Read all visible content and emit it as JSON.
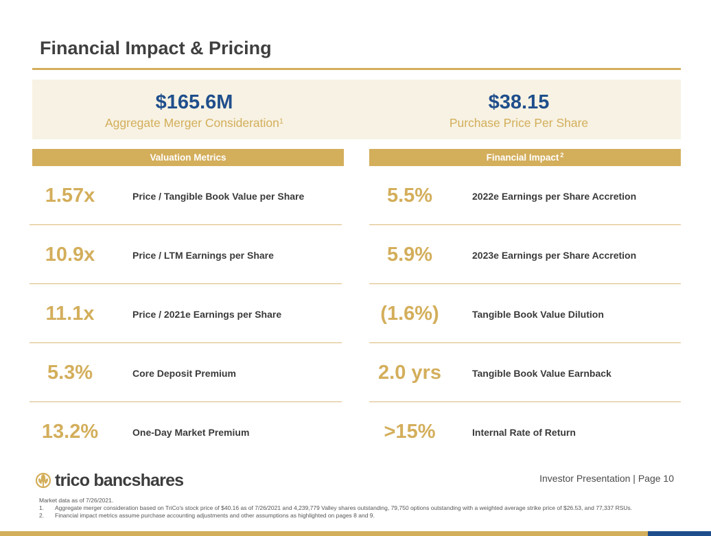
{
  "page": {
    "title": "Financial Impact & Pricing"
  },
  "hero": {
    "left": {
      "value": "$165.6M",
      "label": "Aggregate Merger Consideration",
      "footnote": "1"
    },
    "right": {
      "value": "$38.15",
      "label": "Purchase Price Per Share"
    }
  },
  "valuation": {
    "header": "Valuation Metrics",
    "rows": [
      {
        "value": "1.57x",
        "label": "Price / Tangible Book Value per Share"
      },
      {
        "value": "10.9x",
        "label": "Price / LTM Earnings per Share"
      },
      {
        "value": "11.1x",
        "label": "Price / 2021e Earnings per Share"
      },
      {
        "value": "5.3%",
        "label": "Core Deposit Premium"
      },
      {
        "value": "13.2%",
        "label": "One-Day Market Premium"
      }
    ]
  },
  "impact": {
    "header": "Financial Impact",
    "footnote": "2",
    "rows": [
      {
        "value": "5.5%",
        "label": "2022e Earnings per Share Accretion"
      },
      {
        "value": "5.9%",
        "label": "2023e Earnings per Share Accretion"
      },
      {
        "value": "(1.6%)",
        "label": "Tangible Book Value Dilution"
      },
      {
        "value": "2.0 yrs",
        "label": "Tangible Book Value Earnback"
      },
      {
        "value": ">15%",
        "label": "Internal Rate of Return"
      }
    ]
  },
  "footer": {
    "logo_text": "trico bancshares",
    "page_ref": "Investor Presentation | Page 10",
    "market_data": "Market data as of 7/26/2021.",
    "notes": [
      {
        "num": "1.",
        "text": "Aggregate merger consideration based on TriCo's stock price of $40.16 as of 7/26/2021 and 4,239,779 Valley shares outstanding, 79,750 options outstanding with a weighted average strike price of $26.53, and 77,337 RSUs."
      },
      {
        "num": "2.",
        "text": "Financial impact metrics assume purchase accounting adjustments and other assumptions as highlighted on pages 8 and 9."
      }
    ]
  },
  "colors": {
    "gold": "#d3ae5b",
    "navy": "#1f4e8c",
    "cream": "#f7f2e3",
    "dark_text": "#3f3f3f"
  }
}
